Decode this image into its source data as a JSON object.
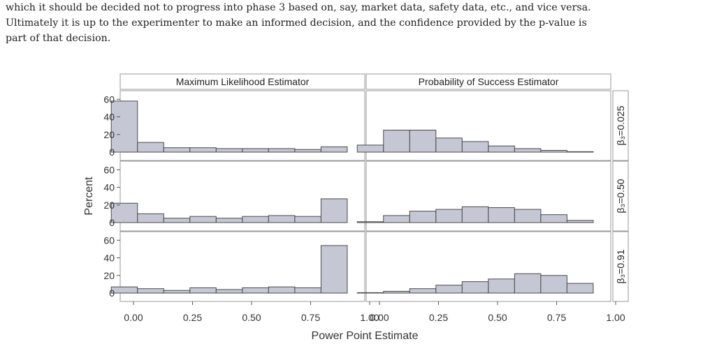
{
  "paragraph": {
    "line1": "which it should be decided not to progress into phase 3 based on, say, market data, safety data, etc., and vice versa.",
    "line2": "Ultimately it is up to the experimenter to make an informed decision, and the confidence provided by the p-value is",
    "line3": "part of that decision."
  },
  "colors": {
    "bar_fill": "#c5c8d4",
    "bar_stroke": "#4a4a4a",
    "panel_border": "#9a9a9a"
  },
  "chart_data": {
    "type": "bar",
    "xlabel": "Power Point Estimate",
    "ylabel": "Percent",
    "columns": [
      "Maximum Likelihood Estimator",
      "Probability of Success Estimator"
    ],
    "rows": [
      "β₃=0.025",
      "β₃=0.50",
      "β₃=0.91"
    ],
    "xlim": [
      0,
      1
    ],
    "xticks": [
      "0.00",
      "0.25",
      "0.50",
      "0.75",
      "1.00"
    ],
    "ylim": [
      0,
      65
    ],
    "yticks": [
      "0",
      "20",
      "40",
      "60"
    ],
    "bin_width": 0.111,
    "panels": [
      {
        "row": 0,
        "col": 0,
        "values": [
          58,
          11,
          5,
          5,
          4,
          4,
          4,
          3,
          6
        ]
      },
      {
        "row": 0,
        "col": 1,
        "values": [
          8,
          25,
          25,
          16,
          12,
          7,
          4,
          2,
          0.5
        ]
      },
      {
        "row": 1,
        "col": 0,
        "values": [
          22,
          10,
          5,
          7,
          5,
          7,
          8,
          7,
          27
        ]
      },
      {
        "row": 1,
        "col": 1,
        "values": [
          1,
          8,
          13,
          15,
          18,
          17,
          15,
          9,
          2.5
        ]
      },
      {
        "row": 2,
        "col": 0,
        "values": [
          7,
          5,
          3,
          6,
          4,
          6,
          7,
          6,
          54
        ]
      },
      {
        "row": 2,
        "col": 1,
        "values": [
          0.5,
          2,
          5,
          9,
          13,
          16,
          22,
          20,
          11
        ]
      }
    ]
  }
}
